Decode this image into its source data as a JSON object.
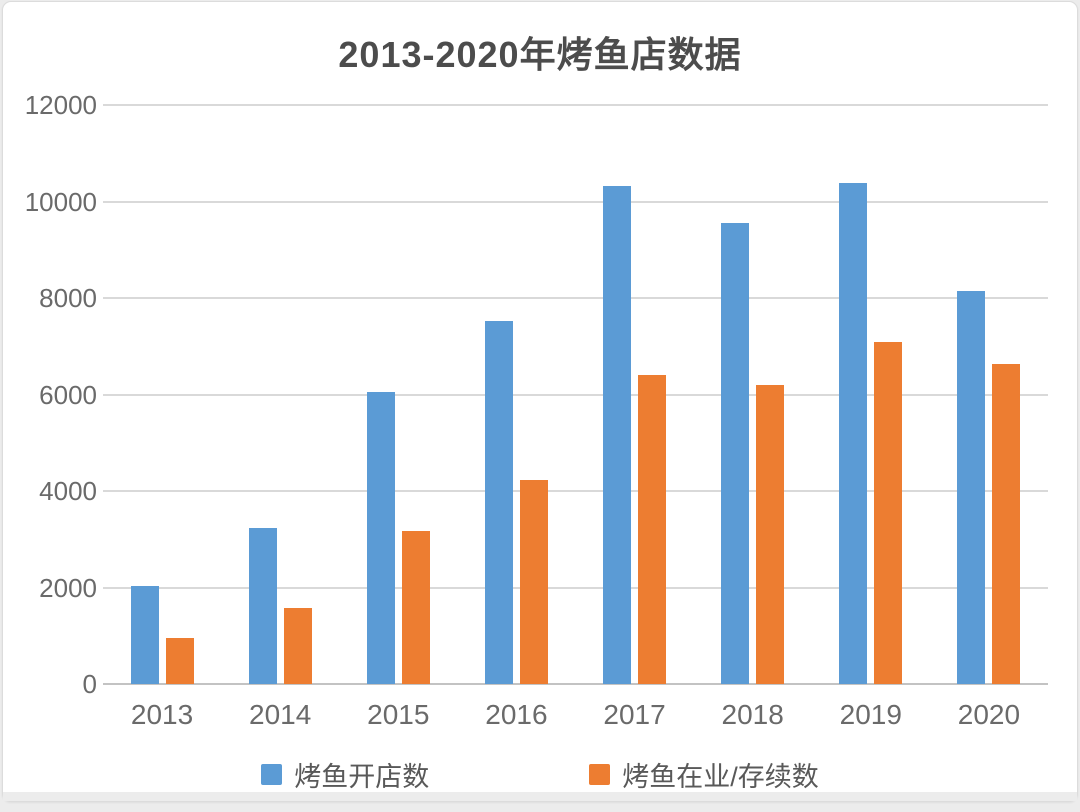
{
  "chart_data": {
    "type": "bar",
    "title": "2013-2020年烤鱼店数据",
    "categories": [
      "2013",
      "2014",
      "2015",
      "2016",
      "2017",
      "2018",
      "2019",
      "2020"
    ],
    "series": [
      {
        "name": "烤鱼开店数",
        "color": "#5B9BD5",
        "values": [
          2030,
          3230,
          6060,
          7520,
          10330,
          9550,
          10390,
          8150
        ]
      },
      {
        "name": "烤鱼在业/存续数",
        "color": "#ED7D31",
        "values": [
          950,
          1580,
          3180,
          4220,
          6400,
          6200,
          7080,
          6640
        ]
      }
    ],
    "ylim": [
      0,
      12000
    ],
    "yticks": [
      0,
      2000,
      4000,
      6000,
      8000,
      10000,
      12000
    ],
    "grid": true,
    "legend_position": "bottom"
  },
  "colors": {
    "series_blue": "#5B9BD5",
    "series_orange": "#ED7D31",
    "gridline": "#d9d9d9",
    "axis_line": "#c3c3c3",
    "title_text": "#4c4c4c",
    "axis_text": "#6a6a6a",
    "card_background": "#ffffff",
    "card_border": "#dcdcdc"
  }
}
